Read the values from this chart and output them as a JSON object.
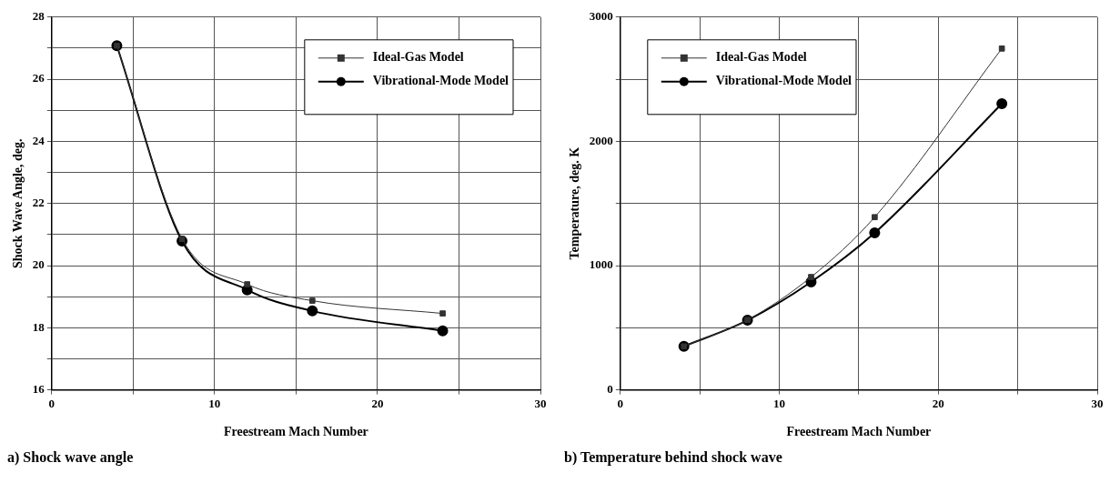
{
  "chart_data": [
    {
      "type": "line",
      "xlabel": "Freestream Mach Number",
      "ylabel": "Shock Wave Angle, deg.",
      "annotations": [
        "a) Shock wave angle"
      ],
      "x": [
        4,
        8,
        12,
        16,
        24
      ],
      "series": [
        {
          "name": "Ideal-Gas Model",
          "color": "#333333",
          "marker": "square",
          "values": [
            27.08,
            20.86,
            19.4,
            18.87,
            18.46
          ]
        },
        {
          "name": "Vibrational-Mode Model",
          "color": "#000000",
          "marker": "circle",
          "values": [
            27.08,
            20.79,
            19.22,
            18.54,
            17.9
          ]
        }
      ],
      "xlim": [
        0,
        30
      ],
      "xticks": [
        0,
        {
          "value": 5,
          "label": null
        },
        10,
        {
          "value": 15,
          "label": null
        },
        20,
        {
          "value": 25,
          "label": null
        },
        30
      ],
      "ylim": [
        16,
        28
      ],
      "yticks": [
        16,
        {
          "value": 17,
          "label": null
        },
        18,
        {
          "value": 19,
          "label": null
        },
        20,
        {
          "value": 21,
          "label": null
        },
        22,
        {
          "value": 23,
          "label": null
        },
        24,
        {
          "value": 25,
          "label": null
        },
        26,
        {
          "value": 27,
          "label": null
        },
        28
      ],
      "grid": true,
      "legend": "top right"
    },
    {
      "type": "line",
      "xlabel": "Freestream Mach Number",
      "ylabel": "Temperature, deg. K",
      "annotations": [
        "b) Temperature behind shock wave"
      ],
      "x": [
        4,
        8,
        12,
        16,
        24
      ],
      "series": [
        {
          "name": "Ideal-Gas Model",
          "color": "#333333",
          "marker": "square",
          "values": [
            350,
            563,
            908,
            1390,
            2747
          ]
        },
        {
          "name": "Vibrational-Mode Model",
          "color": "#000000",
          "marker": "circle",
          "values": [
            350,
            560,
            868,
            1263,
            2303
          ]
        }
      ],
      "xlim": [
        0,
        30
      ],
      "xticks": [
        0,
        {
          "value": 5,
          "label": null
        },
        10,
        {
          "value": 15,
          "label": null
        },
        20,
        {
          "value": 25,
          "label": null
        },
        30
      ],
      "ylim": [
        0,
        3000
      ],
      "yticks": [
        0,
        {
          "value": 500,
          "label": null
        },
        1000,
        {
          "value": 1500,
          "label": null
        },
        2000,
        {
          "value": 2500,
          "label": null
        },
        3000
      ],
      "grid": true,
      "legend": "top left"
    }
  ]
}
